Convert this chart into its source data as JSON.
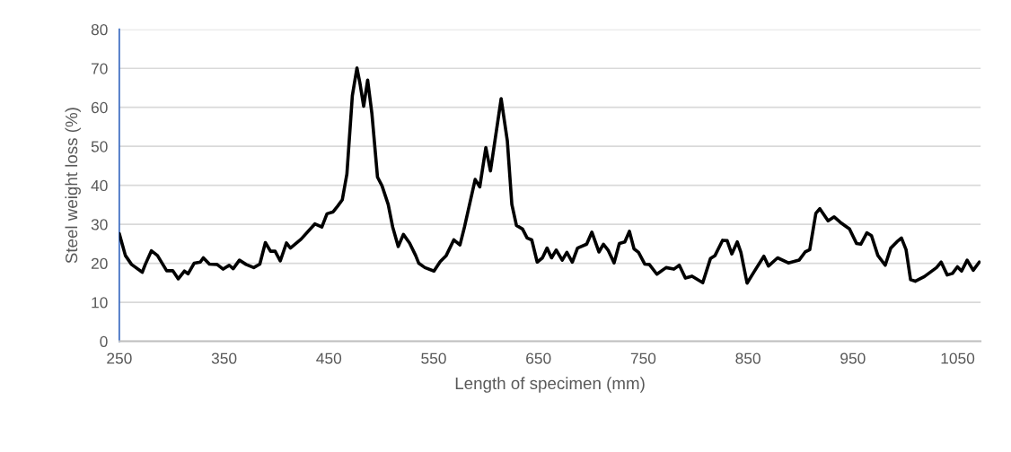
{
  "chart_data": {
    "type": "line",
    "xlabel": "Length of specimen (mm)",
    "ylabel": "Steel weight loss (%)",
    "xlim": [
      250,
      1072
    ],
    "xticks": [
      250,
      350,
      450,
      550,
      650,
      750,
      850,
      950,
      1050
    ],
    "ylim": [
      0,
      80
    ],
    "yticks": [
      0,
      10,
      20,
      30,
      40,
      50,
      60,
      70,
      80
    ],
    "grid": "y",
    "marker": "none",
    "line_style": "solid",
    "series": [
      {
        "color": "#000000",
        "x": [
          250,
          255.8,
          261.7,
          271.9,
          274.8,
          280.6,
          286.4,
          295.2,
          301,
          306.3,
          312.1,
          315.6,
          321.4,
          327.3,
          330.2,
          336,
          343.3,
          349.1,
          354.9,
          358.7,
          364.6,
          371,
          378.3,
          384.1,
          389.4,
          394.3,
          398.7,
          403.6,
          409.5,
          413.3,
          423.5,
          436.6,
          443.3,
          448.2,
          454.1,
          458.5,
          462.8,
          467.2,
          472.4,
          476.8,
          479.7,
          483.2,
          487,
          491.1,
          496.4,
          500.7,
          506.6,
          510.9,
          516.2,
          521.1,
          527,
          532.8,
          535.8,
          541.6,
          550.3,
          556.2,
          562,
          569.2,
          575.1,
          579.4,
          589.6,
          594,
          599.8,
          604.2,
          614.4,
          620.3,
          624.6,
          629,
          634.8,
          639.2,
          643.6,
          648.8,
          653.8,
          658.2,
          662.5,
          666.9,
          672.7,
          677.1,
          682.3,
          687.3,
          696,
          701,
          707.7,
          712,
          716.4,
          722.2,
          727.2,
          732.4,
          736.8,
          741.2,
          745.5,
          751.4,
          755.8,
          763,
          771.8,
          779.2,
          784.4,
          790.2,
          796.6,
          806.8,
          814.1,
          818.5,
          825.7,
          830.1,
          834.5,
          839.7,
          843.2,
          849.1,
          856.4,
          865.1,
          869.5,
          878.2,
          888.5,
          898.7,
          904.5,
          908.9,
          914.7,
          918.5,
          926.4,
          932.2,
          938.1,
          946.8,
          953.5,
          957.6,
          963.4,
          967.8,
          973.9,
          980.9,
          986.2,
          992,
          996.4,
          1000.8,
          1005.1,
          1009.5,
          1018.3,
          1029.9,
          1034.3,
          1040.1,
          1045.1,
          1049.8,
          1053.8,
          1059.1,
          1064.9,
          1070.7
        ],
        "values": [
          27.6,
          22.0,
          19.7,
          17.7,
          19.7,
          23.2,
          22.0,
          18.1,
          18.1,
          16.0,
          18.0,
          17.3,
          20.0,
          20.3,
          21.4,
          19.8,
          19.7,
          18.5,
          19.5,
          18.6,
          20.8,
          19.7,
          18.9,
          19.8,
          25.3,
          23.1,
          23.1,
          20.6,
          25.2,
          23.9,
          26.2,
          30.1,
          29.3,
          32.7,
          33.2,
          34.7,
          36.3,
          42.9,
          63.0,
          70.1,
          66.1,
          60.3,
          67.0,
          58.3,
          42.1,
          39.9,
          35.1,
          29.3,
          24.3,
          27.4,
          25.2,
          22.0,
          20.0,
          18.9,
          18.0,
          20.4,
          22.0,
          26.0,
          24.7,
          29.3,
          41.5,
          39.6,
          49.7,
          43.7,
          62.2,
          51.4,
          35.1,
          29.7,
          28.8,
          26.5,
          26.0,
          20.3,
          21.4,
          23.9,
          21.4,
          23.4,
          20.8,
          22.8,
          20.3,
          23.9,
          24.9,
          28.0,
          22.9,
          24.9,
          23.4,
          20.1,
          25.1,
          25.5,
          28.2,
          23.7,
          22.8,
          19.8,
          19.7,
          17.2,
          18.9,
          18.5,
          19.5,
          16.2,
          16.7,
          15.0,
          21.2,
          22.0,
          25.9,
          25.8,
          22.4,
          25.5,
          22.8,
          14.9,
          18.1,
          21.8,
          19.3,
          21.4,
          20.1,
          20.8,
          22.9,
          23.5,
          32.8,
          34.0,
          30.9,
          31.9,
          30.5,
          28.8,
          25.1,
          24.9,
          27.8,
          27.1,
          22.0,
          19.5,
          23.9,
          25.5,
          26.5,
          23.5,
          15.8,
          15.4,
          16.6,
          18.9,
          20.3,
          17.0,
          17.4,
          19.1,
          18.0,
          20.8,
          18.2,
          20.3
        ]
      }
    ]
  }
}
